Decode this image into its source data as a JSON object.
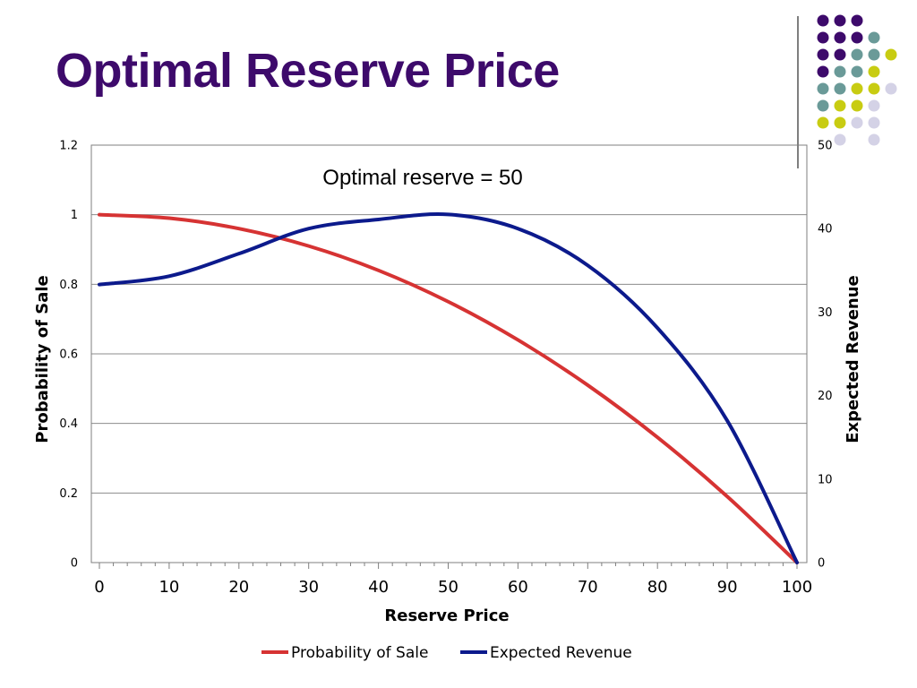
{
  "slide": {
    "title": "Optimal Reserve Price"
  },
  "theme": {
    "title_color": "#3d0a6b",
    "dot_colors": {
      "purple": "#3d0a6b",
      "teal": "#6a9a98",
      "lime": "#c8cc12",
      "lavender": "#d4d2e6"
    }
  },
  "decoration": {
    "dot_grid": [
      [
        "purple",
        "purple",
        "purple",
        null,
        null
      ],
      [
        "purple",
        "purple",
        "purple",
        "teal",
        null
      ],
      [
        "purple",
        "purple",
        "teal",
        "teal",
        "lime"
      ],
      [
        "purple",
        "teal",
        "teal",
        "lime",
        null
      ],
      [
        "teal",
        "teal",
        "lime",
        "lime",
        "lavender"
      ],
      [
        "teal",
        "lime",
        "lime",
        "lavender",
        null
      ],
      [
        "lime",
        "lime",
        "lavender",
        "lavender",
        null
      ],
      [
        null,
        "lavender",
        null,
        "lavender",
        null
      ]
    ]
  },
  "chart_data": {
    "type": "line",
    "annotation": "Optimal reserve = 50",
    "xlabel": "Reserve Price",
    "ylabel_left": "Probability of Sale",
    "ylabel_right": "Expected Revenue",
    "xlim": [
      0,
      100
    ],
    "ylim_left": [
      0,
      1.2
    ],
    "ylim_right": [
      0,
      50
    ],
    "x_ticks": [
      "0",
      "10",
      "20",
      "30",
      "40",
      "50",
      "60",
      "70",
      "80",
      "90",
      "100"
    ],
    "y_ticks_left": [
      "0",
      "0.2",
      "0.4",
      "0.6",
      "0.8",
      "1",
      "1.2"
    ],
    "y_ticks_right": [
      "0",
      "10",
      "20",
      "30",
      "40",
      "50"
    ],
    "grid": true,
    "legend_position": "bottom",
    "x": [
      0,
      10,
      20,
      30,
      40,
      50,
      60,
      70,
      80,
      90,
      100
    ],
    "series": [
      {
        "name": "Probability of Sale",
        "axis": "left",
        "color": "#d63333",
        "values": [
          1.0,
          0.99,
          0.96,
          0.91,
          0.84,
          0.75,
          0.64,
          0.51,
          0.36,
          0.19,
          0.0
        ]
      },
      {
        "name": "Expected Revenue",
        "axis": "right",
        "color": "#0c1a8c",
        "values": [
          33.3,
          34.3,
          37.0,
          40.0,
          41.1,
          41.7,
          40.0,
          35.6,
          28.1,
          17.0,
          0.0
        ]
      }
    ]
  }
}
